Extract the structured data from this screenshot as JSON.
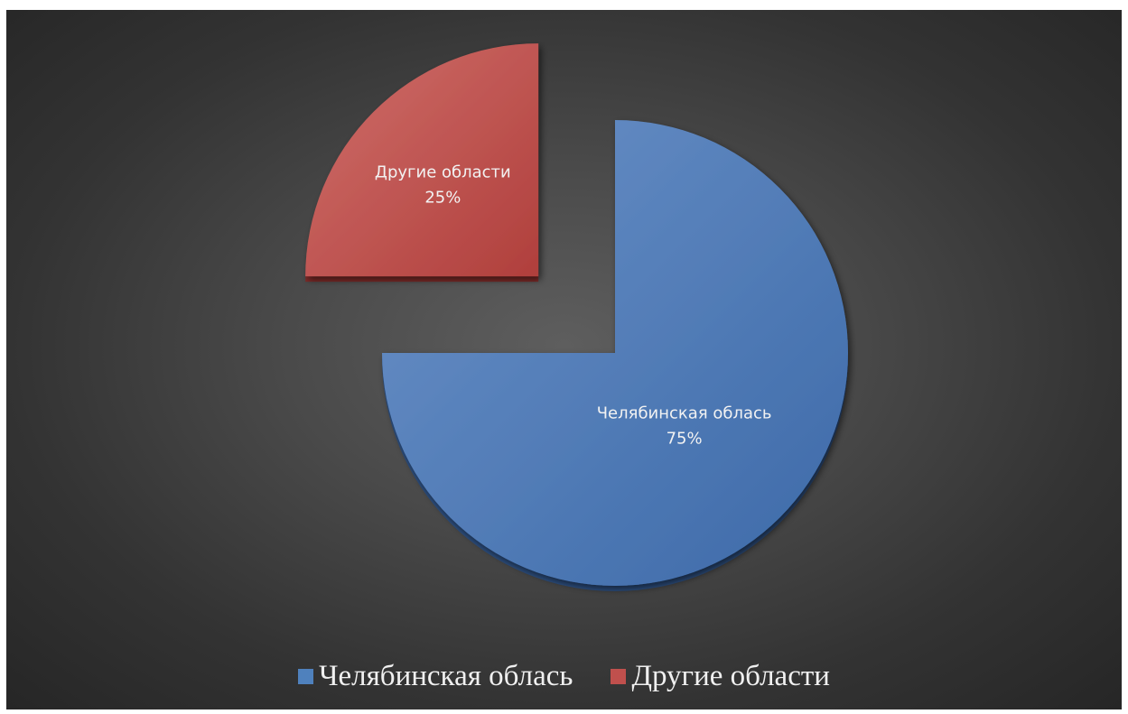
{
  "chart_data": {
    "type": "pie",
    "title": "",
    "series": [
      {
        "name": "",
        "values": [
          75,
          25
        ]
      }
    ],
    "categories": [
      "Челябинская облась",
      "Другие области"
    ],
    "values": [
      75,
      25
    ],
    "data_labels": [
      {
        "category": "Челябинская облась",
        "percent": "75%"
      },
      {
        "category": "Другие области",
        "percent": "25%"
      }
    ],
    "exploded": [
      false,
      true
    ],
    "start_angle_deg": 0,
    "direction": "clockwise",
    "legend": {
      "placement": "bottom",
      "entries": [
        "Челябинская облась",
        "Другие области"
      ]
    },
    "colors": [
      "#4f7fc0",
      "#c0504d"
    ],
    "background": "#444444"
  }
}
